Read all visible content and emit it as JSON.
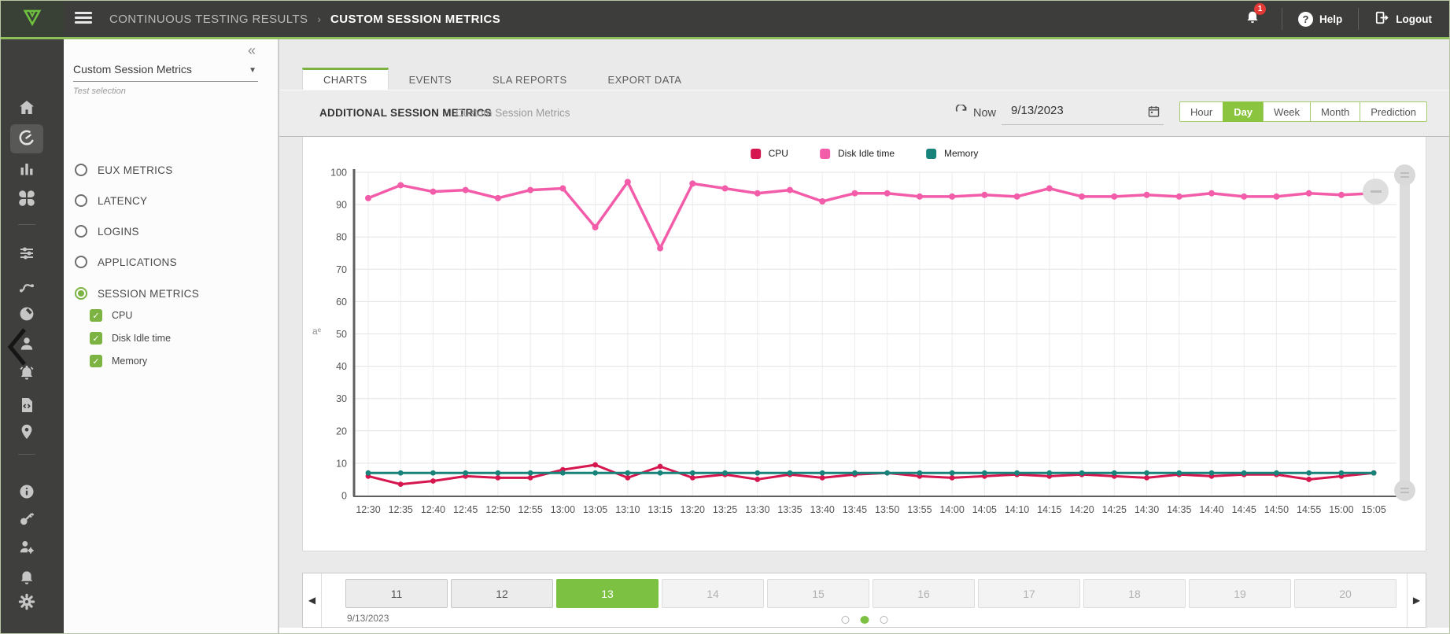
{
  "header": {
    "breadcrumb_parent": "CONTINUOUS TESTING RESULTS",
    "breadcrumb_separator": "›",
    "breadcrumb_current": "CUSTOM SESSION METRICS",
    "notification_count": "1",
    "help_label": "Help",
    "logout_label": "Logout"
  },
  "colors": {
    "accent_green": "#7cb342",
    "selected_green": "#8bc540",
    "header_bg": "#3d3d3c",
    "badge_red": "#e53935"
  },
  "sidebar": {
    "icons": [
      "home-icon",
      "dashboard-gauge-icon",
      "bar-chart-icon",
      "apps-icon",
      "divider",
      "tune-sliders-icon",
      "connection-icon",
      "globe-icon",
      "user-icon",
      "alarm-icon",
      "code-document-icon",
      "location-pin-icon",
      "divider",
      "info-icon",
      "key-icon",
      "user-settings-icon",
      "notifications-icon",
      "settings-icon"
    ],
    "active_icon": "dashboard-gauge-icon"
  },
  "panel": {
    "collapse_icon": "«",
    "dropdown_value": "Custom Session Metrics",
    "caption": "Test selection",
    "options": [
      {
        "label": "EUX METRICS",
        "selected": false
      },
      {
        "label": "LATENCY",
        "selected": false
      },
      {
        "label": "LOGINS",
        "selected": false
      },
      {
        "label": "APPLICATIONS",
        "selected": false
      },
      {
        "label": "SESSION METRICS",
        "selected": true
      }
    ],
    "metrics": [
      {
        "label": "CPU",
        "checked": true
      },
      {
        "label": "Disk Idle time",
        "checked": true
      },
      {
        "label": "Memory",
        "checked": true
      }
    ]
  },
  "tabs": {
    "items": [
      "CHARTS",
      "EVENTS",
      "SLA REPORTS",
      "EXPORT DATA"
    ],
    "active": "CHARTS"
  },
  "toolbar": {
    "title": "ADDITIONAL SESSION METRICS",
    "subtitle": "Custom Session Metrics",
    "now_label": "Now",
    "date_value": "9/13/2023",
    "range_buttons": [
      "Hour",
      "Day",
      "Week",
      "Month",
      "Prediction"
    ],
    "active_range": "Day",
    "y_axis_icon_glyph": "aᵉ"
  },
  "chart_data": {
    "type": "line",
    "title": "",
    "xlabel": "",
    "ylabel": "",
    "ylim": [
      0,
      100
    ],
    "ytick_step": 10,
    "grid": true,
    "legend_position": "top",
    "categories": [
      "12:30",
      "12:35",
      "12:40",
      "12:45",
      "12:50",
      "12:55",
      "13:00",
      "13:05",
      "13:10",
      "13:15",
      "13:20",
      "13:25",
      "13:30",
      "13:35",
      "13:40",
      "13:45",
      "13:50",
      "13:55",
      "14:00",
      "14:05",
      "14:10",
      "14:15",
      "14:20",
      "14:25",
      "14:30",
      "14:35",
      "14:40",
      "14:45",
      "14:50",
      "14:55",
      "15:00",
      "15:05"
    ],
    "series": [
      {
        "name": "CPU",
        "color": "#d6164e",
        "values": [
          6,
          3.5,
          4.5,
          6,
          5.5,
          5.5,
          8,
          9.5,
          5.5,
          9,
          5.5,
          6.5,
          5,
          6.5,
          5.5,
          6.5,
          7,
          6,
          5.5,
          6,
          6.5,
          6,
          6.5,
          6,
          5.5,
          6.5,
          6,
          6.5,
          6.5,
          5,
          6,
          7
        ]
      },
      {
        "name": "Disk Idle time",
        "color": "#f25ca9",
        "values": [
          92,
          96,
          94,
          94.5,
          92,
          94.5,
          95,
          83,
          97,
          76.5,
          96.5,
          95,
          93.5,
          94.5,
          91,
          93.5,
          93.5,
          92.5,
          92.5,
          93,
          92.5,
          95,
          92.5,
          92.5,
          93,
          92.5,
          93.5,
          92.5,
          92.5,
          93.5,
          93,
          93.5
        ]
      },
      {
        "name": "Memory",
        "color": "#17837a",
        "values": [
          7,
          7,
          7,
          7,
          7,
          7,
          7,
          7,
          7,
          7,
          7,
          7,
          7,
          7,
          7,
          7,
          7,
          7,
          7,
          7,
          7,
          7,
          7,
          7,
          7,
          7,
          7,
          7,
          7,
          7,
          7,
          7
        ]
      }
    ]
  },
  "navigator": {
    "days": [
      {
        "label": "11",
        "state": "past"
      },
      {
        "label": "12",
        "state": "past"
      },
      {
        "label": "13",
        "state": "selected"
      },
      {
        "label": "14",
        "state": "future"
      },
      {
        "label": "15",
        "state": "future"
      },
      {
        "label": "16",
        "state": "future"
      },
      {
        "label": "17",
        "state": "future"
      },
      {
        "label": "18",
        "state": "future"
      },
      {
        "label": "19",
        "state": "future"
      },
      {
        "label": "20",
        "state": "future"
      }
    ],
    "date_label": "9/13/2023",
    "dots": {
      "count": 3,
      "active_index": 1
    }
  }
}
